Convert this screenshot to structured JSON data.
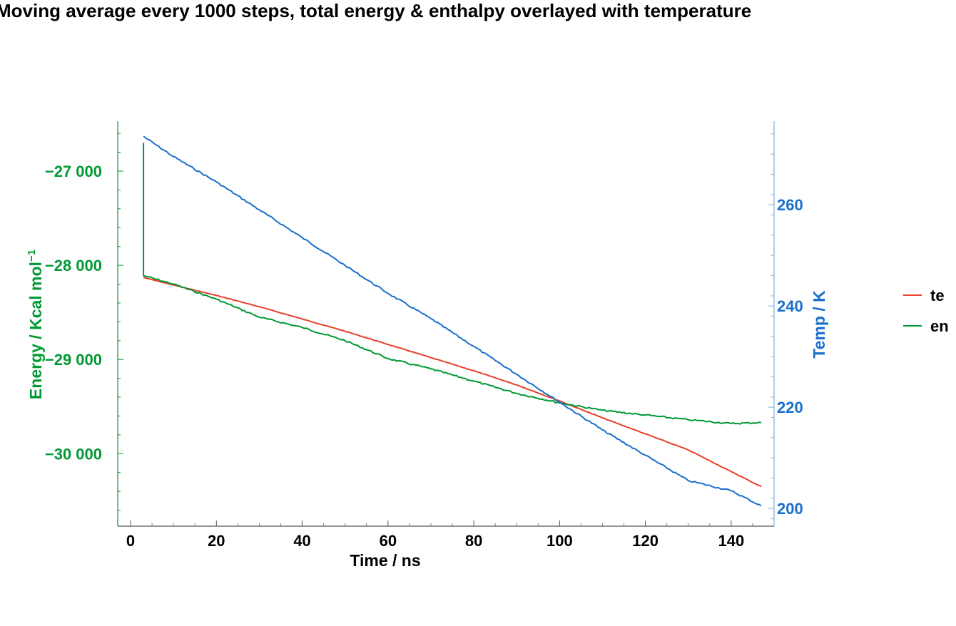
{
  "chart_data": {
    "type": "line",
    "title": "Moving average every 1000 steps, total energy & enthalpy overlayed with temperature",
    "xlabel": "Time / ns",
    "ylabel_left": "Energy / Kcal mol",
    "ylabel_left_superscript": "−1",
    "ylabel_right": "Temp / K",
    "xlim": [
      -3,
      150
    ],
    "ylim_left": [
      -30770,
      -26470
    ],
    "ylim_right": [
      196.5,
      276.5
    ],
    "x_ticks": [
      0,
      20,
      40,
      60,
      80,
      100,
      120,
      140
    ],
    "x_tick_labels": [
      "0",
      "20",
      "40",
      "60",
      "80",
      "100",
      "120",
      "140"
    ],
    "y_left_ticks": [
      -27000,
      -28000,
      -29000,
      -30000
    ],
    "y_left_tick_labels": [
      "−27 000",
      "−28 000",
      "−29 000",
      "−30 000"
    ],
    "y_right_ticks": [
      200,
      220,
      240,
      260
    ],
    "y_right_tick_labels": [
      "200",
      "220",
      "240",
      "260"
    ],
    "grid": false,
    "legend_position": "right",
    "colors": {
      "left_axis": "#009933",
      "right_axis": "#1a6ecc",
      "total_energy": "#e8402a",
      "enthalpy": "#009933",
      "temperature": "#1a6ecc"
    },
    "series": [
      {
        "name": "te",
        "axis": "left",
        "color": "#e8402a",
        "x": [
          3,
          10,
          20,
          30,
          40,
          50,
          60,
          70,
          80,
          90,
          100,
          110,
          120,
          130,
          140,
          147
        ],
        "values": [
          -28130,
          -28210,
          -28320,
          -28440,
          -28570,
          -28700,
          -28840,
          -28980,
          -29120,
          -29270,
          -29440,
          -29620,
          -29790,
          -29960,
          -30190,
          -30350
        ]
      },
      {
        "name": "en",
        "axis": "left",
        "color": "#009933",
        "x": [
          3,
          3,
          10,
          20,
          30,
          40,
          50,
          60,
          70,
          80,
          90,
          100,
          110,
          120,
          130,
          140,
          147
        ],
        "values": [
          -26700,
          -28110,
          -28200,
          -28360,
          -28550,
          -28660,
          -28800,
          -28990,
          -29100,
          -29230,
          -29360,
          -29460,
          -29540,
          -29590,
          -29640,
          -29680,
          -29670
        ]
      },
      {
        "name": "temperature",
        "axis": "right",
        "color": "#1a6ecc",
        "x": [
          3,
          10,
          20,
          30,
          40,
          50,
          60,
          70,
          80,
          90,
          100,
          110,
          120,
          130,
          140,
          147
        ],
        "values": [
          273.5,
          269.5,
          264.5,
          259,
          253.5,
          248,
          242.5,
          237.5,
          232,
          226.5,
          221,
          215.5,
          210.5,
          205.5,
          203.5,
          200.5
        ]
      }
    ]
  }
}
